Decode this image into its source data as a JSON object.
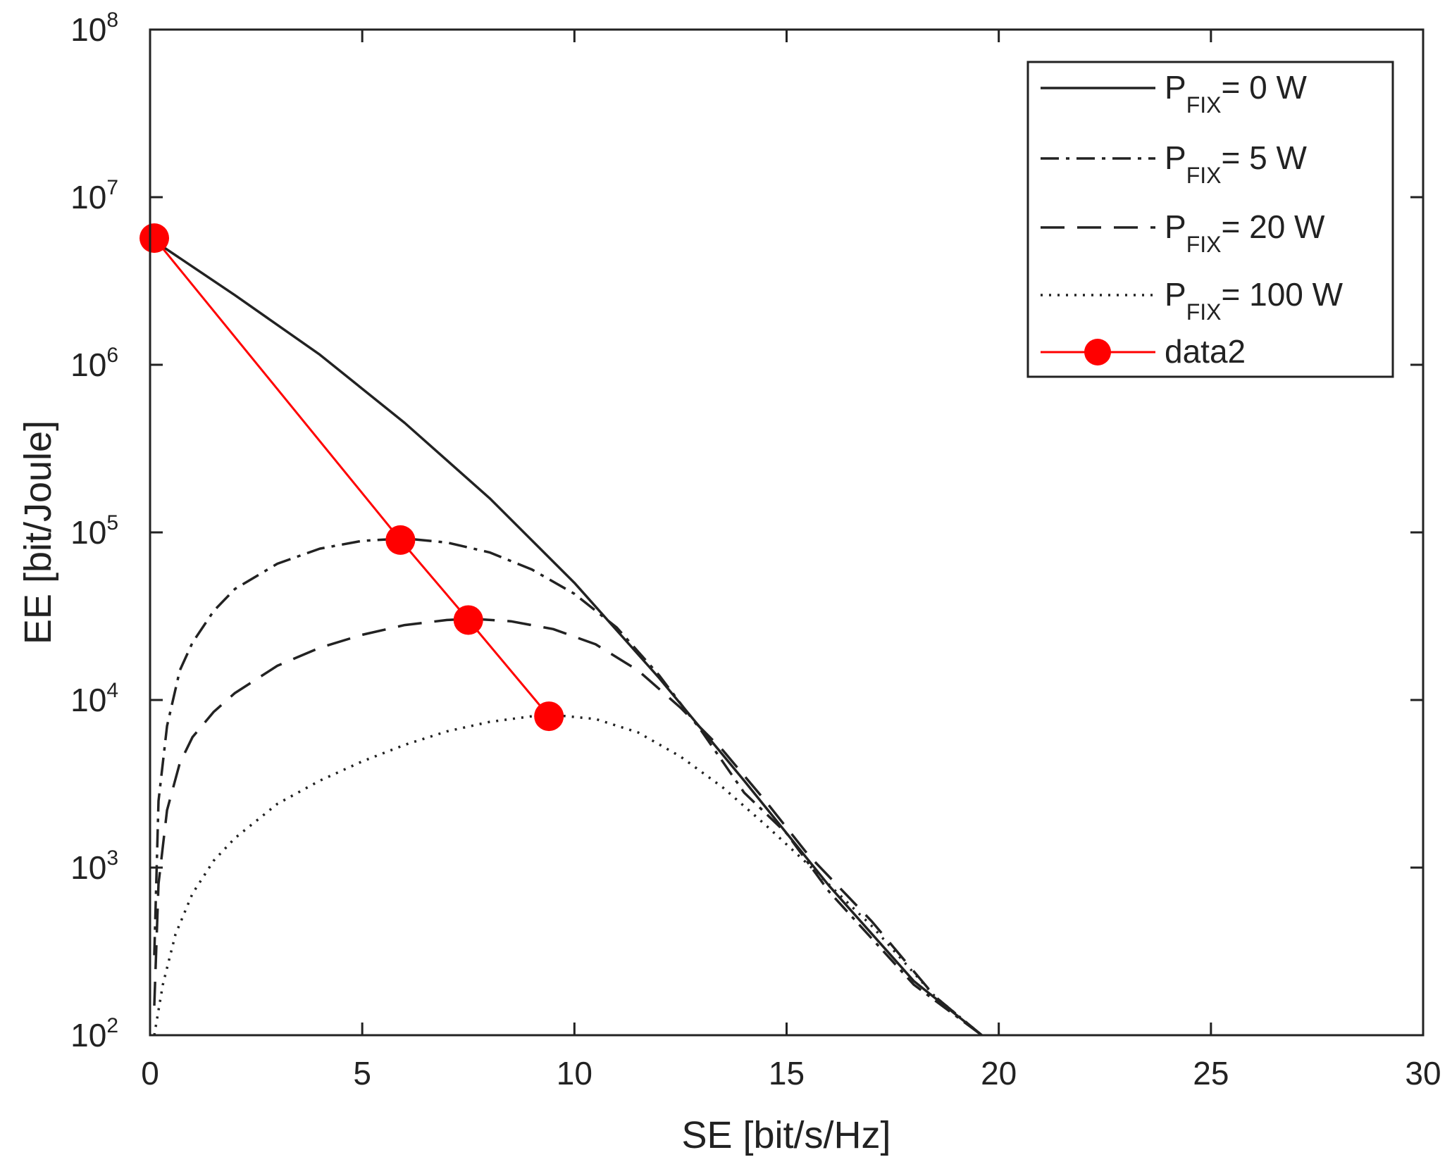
{
  "chart_data": {
    "type": "line",
    "xlabel": "SE [bit/s/Hz]",
    "ylabel": "EE [bit/Joule]",
    "xlim": [
      0,
      30
    ],
    "ylim": [
      100,
      100000000
    ],
    "yscale": "log",
    "grid": false,
    "legend_position": "top-right",
    "x_ticks": [
      "0",
      "5",
      "10",
      "15",
      "20",
      "25",
      "30"
    ],
    "y_ticks": [
      {
        "base": "10",
        "exp": "2",
        "value": 100
      },
      {
        "base": "10",
        "exp": "3",
        "value": 1000
      },
      {
        "base": "10",
        "exp": "4",
        "value": 10000
      },
      {
        "base": "10",
        "exp": "5",
        "value": 100000
      },
      {
        "base": "10",
        "exp": "6",
        "value": 1000000
      },
      {
        "base": "10",
        "exp": "7",
        "value": 10000000
      },
      {
        "base": "10",
        "exp": "8",
        "value": 100000000
      }
    ],
    "series": [
      {
        "legend_main": "P",
        "legend_sub": "FIX",
        "legend_rest": "= 0 W",
        "style": "solid",
        "color": "#222222",
        "points": [
          [
            0,
            5700000
          ],
          [
            2,
            2600000
          ],
          [
            4,
            1150000
          ],
          [
            6,
            450000
          ],
          [
            8,
            160000
          ],
          [
            10,
            50000
          ],
          [
            12,
            13500
          ],
          [
            14,
            3300
          ],
          [
            16,
            780
          ],
          [
            18,
            210
          ],
          [
            19.6,
            100
          ]
        ]
      },
      {
        "legend_main": "P",
        "legend_sub": "FIX",
        "legend_rest": "= 5 W",
        "style": "dashdot",
        "color": "#222222",
        "points": [
          [
            0.1,
            300
          ],
          [
            0.2,
            2500
          ],
          [
            0.4,
            7000
          ],
          [
            0.7,
            15000
          ],
          [
            1,
            22000
          ],
          [
            1.5,
            34000
          ],
          [
            2,
            46000
          ],
          [
            3,
            65000
          ],
          [
            4,
            80000
          ],
          [
            5,
            89000
          ],
          [
            6,
            92000
          ],
          [
            7,
            87000
          ],
          [
            8,
            76000
          ],
          [
            9,
            60000
          ],
          [
            10,
            43000
          ],
          [
            11,
            27000
          ],
          [
            12,
            14000
          ],
          [
            13,
            6500
          ],
          [
            14,
            2800
          ],
          [
            15,
            1600
          ],
          [
            16,
            720
          ],
          [
            18,
            200
          ],
          [
            19.6,
            100
          ]
        ]
      },
      {
        "legend_main": "P",
        "legend_sub": "FIX",
        "legend_rest": "= 20 W",
        "style": "dashed",
        "color": "#222222",
        "points": [
          [
            0.1,
            150
          ],
          [
            0.2,
            800
          ],
          [
            0.4,
            2200
          ],
          [
            0.7,
            4200
          ],
          [
            1,
            6000
          ],
          [
            1.5,
            8500
          ],
          [
            2,
            11000
          ],
          [
            3,
            16000
          ],
          [
            4,
            20500
          ],
          [
            5,
            24500
          ],
          [
            6,
            28000
          ],
          [
            7,
            30000
          ],
          [
            7.6,
            30500
          ],
          [
            8.5,
            29500
          ],
          [
            9.5,
            26500
          ],
          [
            10.5,
            21500
          ],
          [
            11.5,
            15000
          ],
          [
            12.5,
            9000
          ],
          [
            13.5,
            5000
          ],
          [
            14.5,
            2500
          ],
          [
            15.5,
            1200
          ],
          [
            17,
            480
          ],
          [
            18.5,
            170
          ],
          [
            19.6,
            100
          ]
        ]
      },
      {
        "legend_main": "P",
        "legend_sub": "FIX",
        "legend_rest": "= 100 W",
        "style": "dotted",
        "color": "#222222",
        "points": [
          [
            0.1,
            100
          ],
          [
            0.3,
            200
          ],
          [
            0.6,
            400
          ],
          [
            1,
            700
          ],
          [
            1.5,
            1100
          ],
          [
            2,
            1500
          ],
          [
            3,
            2400
          ],
          [
            4,
            3300
          ],
          [
            5,
            4300
          ],
          [
            6,
            5400
          ],
          [
            7,
            6500
          ],
          [
            8,
            7400
          ],
          [
            9,
            8000
          ],
          [
            9.6,
            8100
          ],
          [
            10.5,
            7700
          ],
          [
            11.5,
            6400
          ],
          [
            12.5,
            4600
          ],
          [
            13.5,
            3000
          ],
          [
            14.5,
            1800
          ],
          [
            15.5,
            1050
          ],
          [
            17,
            450
          ],
          [
            18.5,
            170
          ],
          [
            19.6,
            100
          ]
        ]
      },
      {
        "name": "data2",
        "style": "solid-markers",
        "color": "#ff0000",
        "points": [
          [
            0.1,
            5700000
          ],
          [
            5.9,
            90000
          ],
          [
            7.5,
            30000
          ],
          [
            9.4,
            8000
          ]
        ]
      }
    ]
  }
}
